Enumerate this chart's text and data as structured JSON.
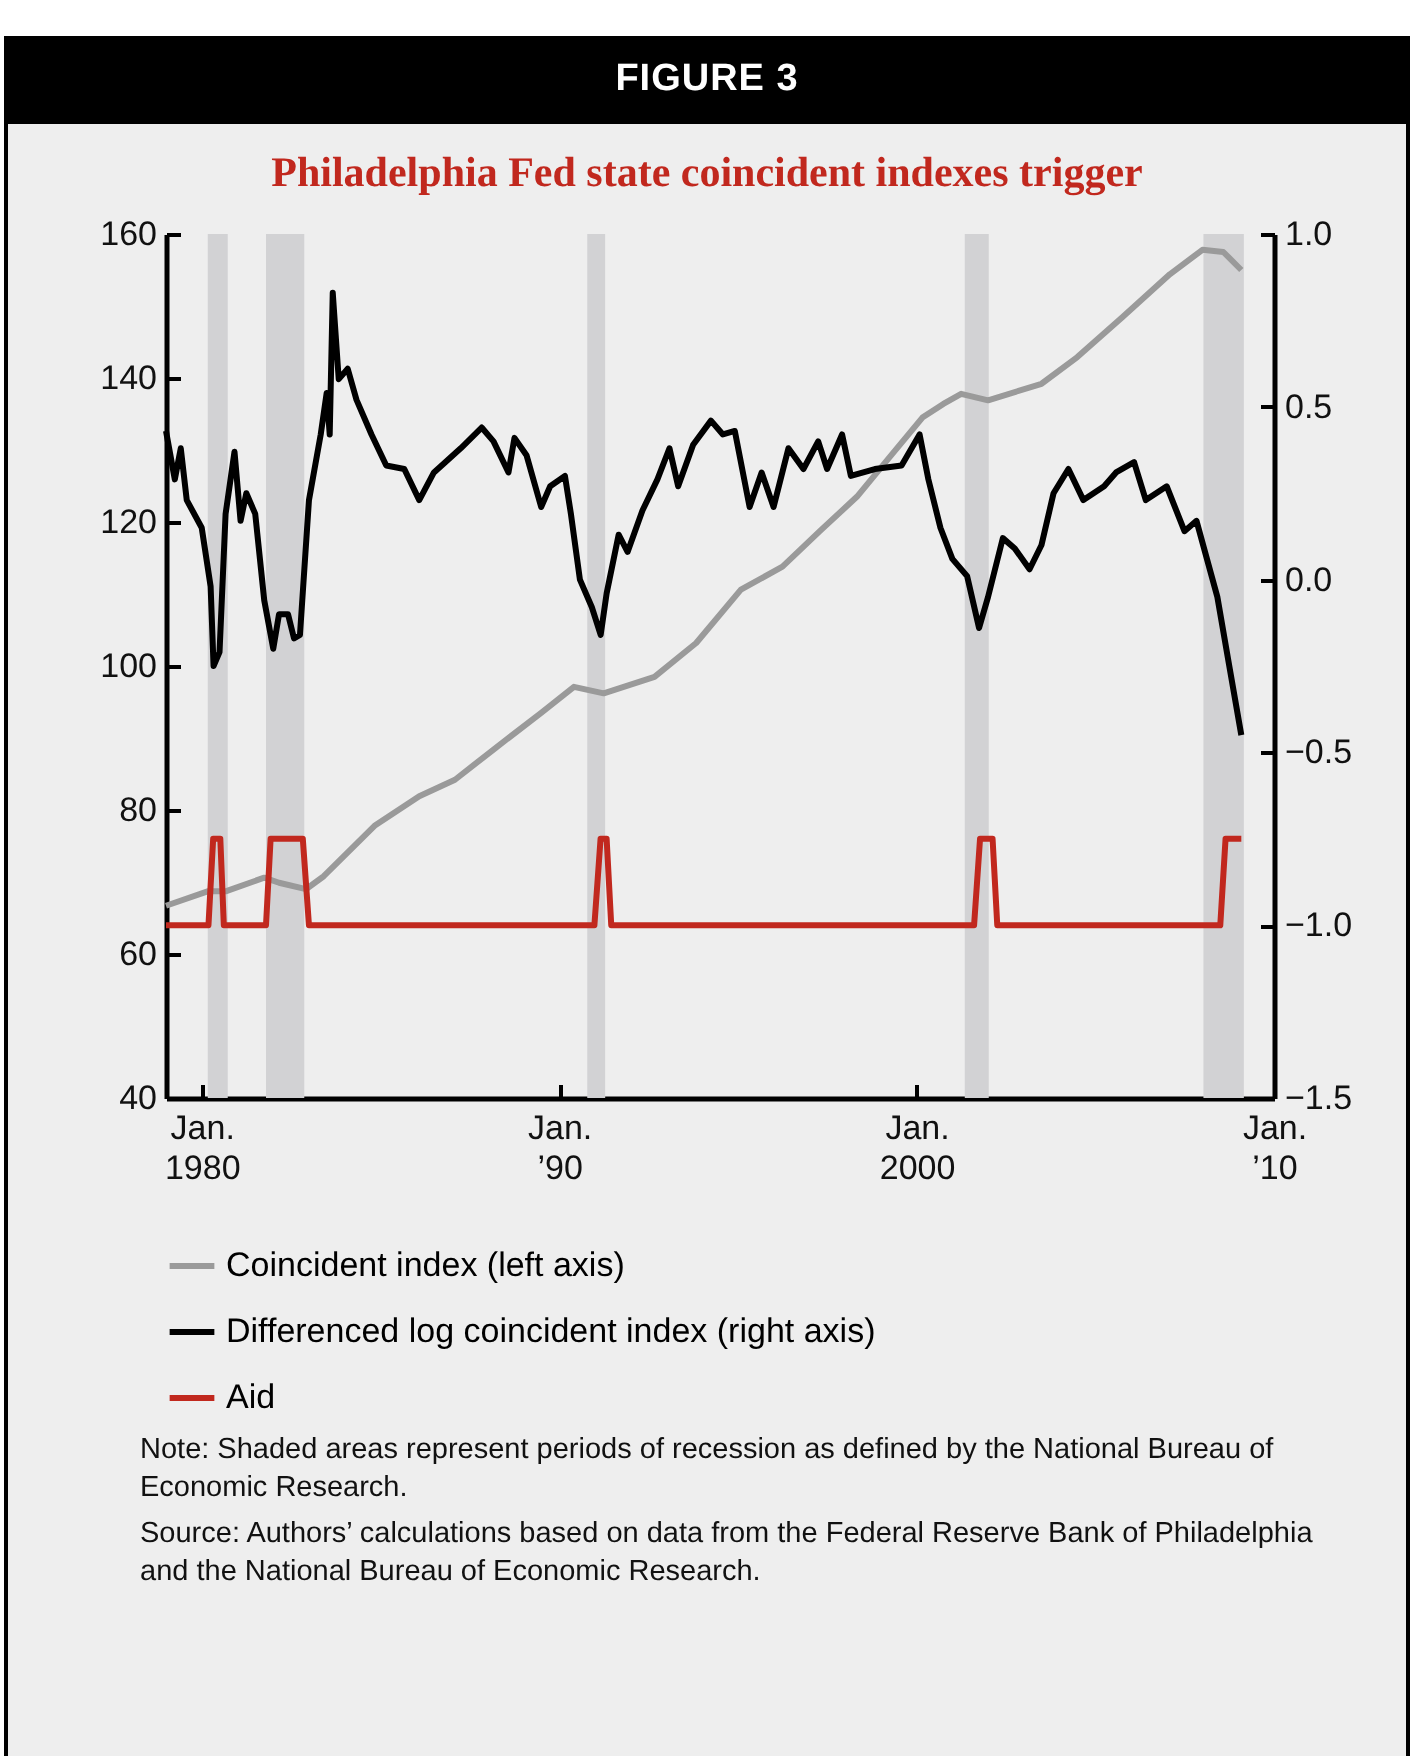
{
  "chart_data": {
    "type": "line",
    "title": "FIGURE 3",
    "subtitle": "Philadelphia Fed state coincident indexes trigger",
    "xlim": [
      "1979-01-01",
      "2010-01-01"
    ],
    "xticks": [
      {
        "value": "1980-01",
        "label": "Jan.\n1980"
      },
      {
        "value": "1990-01",
        "label": "Jan.\n’90"
      },
      {
        "value": "2000-01",
        "label": "Jan.\n2000"
      },
      {
        "value": "2010-01",
        "label": "Jan.\n’10"
      }
    ],
    "ylim": [
      40,
      160
    ],
    "yticks": [
      40,
      60,
      80,
      100,
      120,
      140,
      160
    ],
    "y2lim": [
      -1.5,
      1.0
    ],
    "y2ticks": [
      {
        "value": -1.5,
        "label": "−1.5"
      },
      {
        "value": -1.0,
        "label": "−1.0"
      },
      {
        "value": -0.5,
        "label": "−0.5"
      },
      {
        "value": 0,
        "label": "0.0"
      },
      {
        "value": 0.5,
        "label": "0.5"
      },
      {
        "value": 1.0,
        "label": "1.0"
      }
    ],
    "grid": false,
    "legend": "bottom",
    "series": [
      {
        "name": "Coincident index (left axis)",
        "color": "#9a9a9a",
        "x": [
          "1979-01",
          "1980-03",
          "1980-09",
          "1981-10",
          "1982-03",
          "1982-12",
          "1983-06",
          "1984-11",
          "1986-02",
          "1987-02",
          "1988-03",
          "1989-07",
          "1990-06",
          "1991-04",
          "1992-09",
          "1993-11",
          "1995-02",
          "1996-04",
          "1997-05",
          "1998-05",
          "1999-04",
          "2000-03",
          "2000-10",
          "2001-04",
          "2002-01",
          "2003-07",
          "2004-07",
          "2005-10",
          "2007-02",
          "2008-01",
          "2008-08",
          "2009-02"
        ],
        "values": [
          66.7,
          68.7,
          68.7,
          70.6,
          69.9,
          69.0,
          70.8,
          77.8,
          81.9,
          84.2,
          88.4,
          93.5,
          97.1,
          96.2,
          98.5,
          103.2,
          110.6,
          113.8,
          118.9,
          123.5,
          129.0,
          134.5,
          136.4,
          137.8,
          136.9,
          139.2,
          142.9,
          148.4,
          154.4,
          157.8,
          157.5,
          155.0
        ]
      },
      {
        "name": "Differenced log coincident index (right axis)",
        "color": "#000000",
        "axis": "y2",
        "x": [
          "1979-01",
          "1979-04",
          "1979-06",
          "1979-08",
          "1980-01",
          "1980-04",
          "1980-05",
          "1980-07",
          "1980-09",
          "1980-12",
          "1981-02",
          "1981-04",
          "1981-07",
          "1981-10",
          "1982-01",
          "1982-03",
          "1982-06",
          "1982-08",
          "1982-10",
          "1983-01",
          "1983-05",
          "1983-07",
          "1983-08",
          "1983-09",
          "1983-11",
          "1984-02",
          "1984-05",
          "1984-10",
          "1985-03",
          "1985-09",
          "1986-02",
          "1986-07",
          "1987-04",
          "1987-11",
          "1988-03",
          "1988-08",
          "1988-10",
          "1989-02",
          "1989-07",
          "1989-10",
          "1990-03",
          "1990-05",
          "1990-08",
          "1990-12",
          "1991-03",
          "1991-05",
          "1991-09",
          "1991-12",
          "1992-05",
          "1992-10",
          "1993-02",
          "1993-05",
          "1993-10",
          "1994-04",
          "1994-08",
          "1994-12",
          "1995-05",
          "1995-09",
          "1996-01",
          "1996-06",
          "1996-11",
          "1997-04",
          "1997-07",
          "1997-12",
          "1998-03",
          "1998-11",
          "1999-08",
          "2000-02",
          "2000-05",
          "2000-09",
          "2001-01",
          "2001-06",
          "2001-10",
          "2002-01",
          "2002-06",
          "2002-10",
          "2003-03",
          "2003-07",
          "2003-11",
          "2004-04",
          "2004-09",
          "2005-04",
          "2005-08",
          "2006-02",
          "2006-06",
          "2007-01",
          "2007-07",
          "2007-11",
          "2008-06",
          "2008-10",
          "2009-02"
        ],
        "values": [
          0.43,
          0.29,
          0.38,
          0.23,
          0.15,
          -0.02,
          -0.25,
          -0.21,
          0.19,
          0.37,
          0.17,
          0.25,
          0.19,
          -0.06,
          -0.2,
          -0.1,
          -0.1,
          -0.17,
          -0.16,
          0.23,
          0.42,
          0.54,
          0.42,
          0.83,
          0.58,
          0.61,
          0.52,
          0.42,
          0.33,
          0.32,
          0.23,
          0.31,
          0.38,
          0.44,
          0.4,
          0.31,
          0.41,
          0.36,
          0.21,
          0.27,
          0.3,
          0.19,
          0.0,
          -0.08,
          -0.16,
          -0.04,
          0.13,
          0.08,
          0.2,
          0.29,
          0.38,
          0.27,
          0.39,
          0.46,
          0.42,
          0.43,
          0.21,
          0.31,
          0.21,
          0.38,
          0.32,
          0.4,
          0.32,
          0.42,
          0.3,
          0.32,
          0.33,
          0.42,
          0.29,
          0.15,
          0.06,
          0.01,
          -0.14,
          -0.05,
          0.12,
          0.09,
          0.03,
          0.1,
          0.25,
          0.32,
          0.23,
          0.27,
          0.31,
          0.34,
          0.23,
          0.27,
          0.14,
          0.17,
          -0.05,
          -0.25,
          -0.45
        ]
      },
      {
        "name": "Aid",
        "color": "#c1281e",
        "axis": "y2",
        "x": [
          "1979-01-01",
          "1980-03-10",
          "1980-04-27",
          "1980-07-09",
          "1980-08-14",
          "1981-10-19",
          "1981-12-05",
          "1982-10-30",
          "1983-01-01",
          "1990-12-27",
          "1991-02-28",
          "1991-05-01",
          "1991-06-17",
          "2001-08-11",
          "2001-10-11",
          "2002-02-16",
          "2002-04-05",
          "2008-07-01",
          "2008-08-24",
          "2009-02-01"
        ],
        "values": [
          -1.0,
          -1.0,
          -0.75,
          -0.75,
          -1.0,
          -1.0,
          -0.75,
          -0.75,
          -1.0,
          -1.0,
          -0.75,
          -0.75,
          -1.0,
          -1.0,
          -0.75,
          -0.75,
          -1.0,
          -1.0,
          -0.75,
          -0.75
        ]
      }
    ],
    "bands": [
      {
        "axis": "x",
        "from": "1980-03-03",
        "to": "1980-09-23",
        "color": "#d2d2d4"
      },
      {
        "axis": "x",
        "from": "1981-10-19",
        "to": "1982-11-14",
        "color": "#d2d2d4"
      },
      {
        "axis": "x",
        "from": "1990-10-15",
        "to": "1991-04-16",
        "color": "#d2d2d4"
      },
      {
        "axis": "x",
        "from": "2001-05-08",
        "to": "2002-01-08",
        "color": "#d2d2d4"
      },
      {
        "axis": "x",
        "from": "2008-01-11",
        "to": "2009-02-27",
        "color": "#d2d2d4"
      }
    ],
    "annotations": [
      "Note: Shaded areas represent periods of recession as defined by the National Bureau of Economic Research.",
      "Source: Authors’ calculations based on data from the Federal Reserve Bank of Philadelphia and the National Bureau of Economic Research."
    ]
  }
}
